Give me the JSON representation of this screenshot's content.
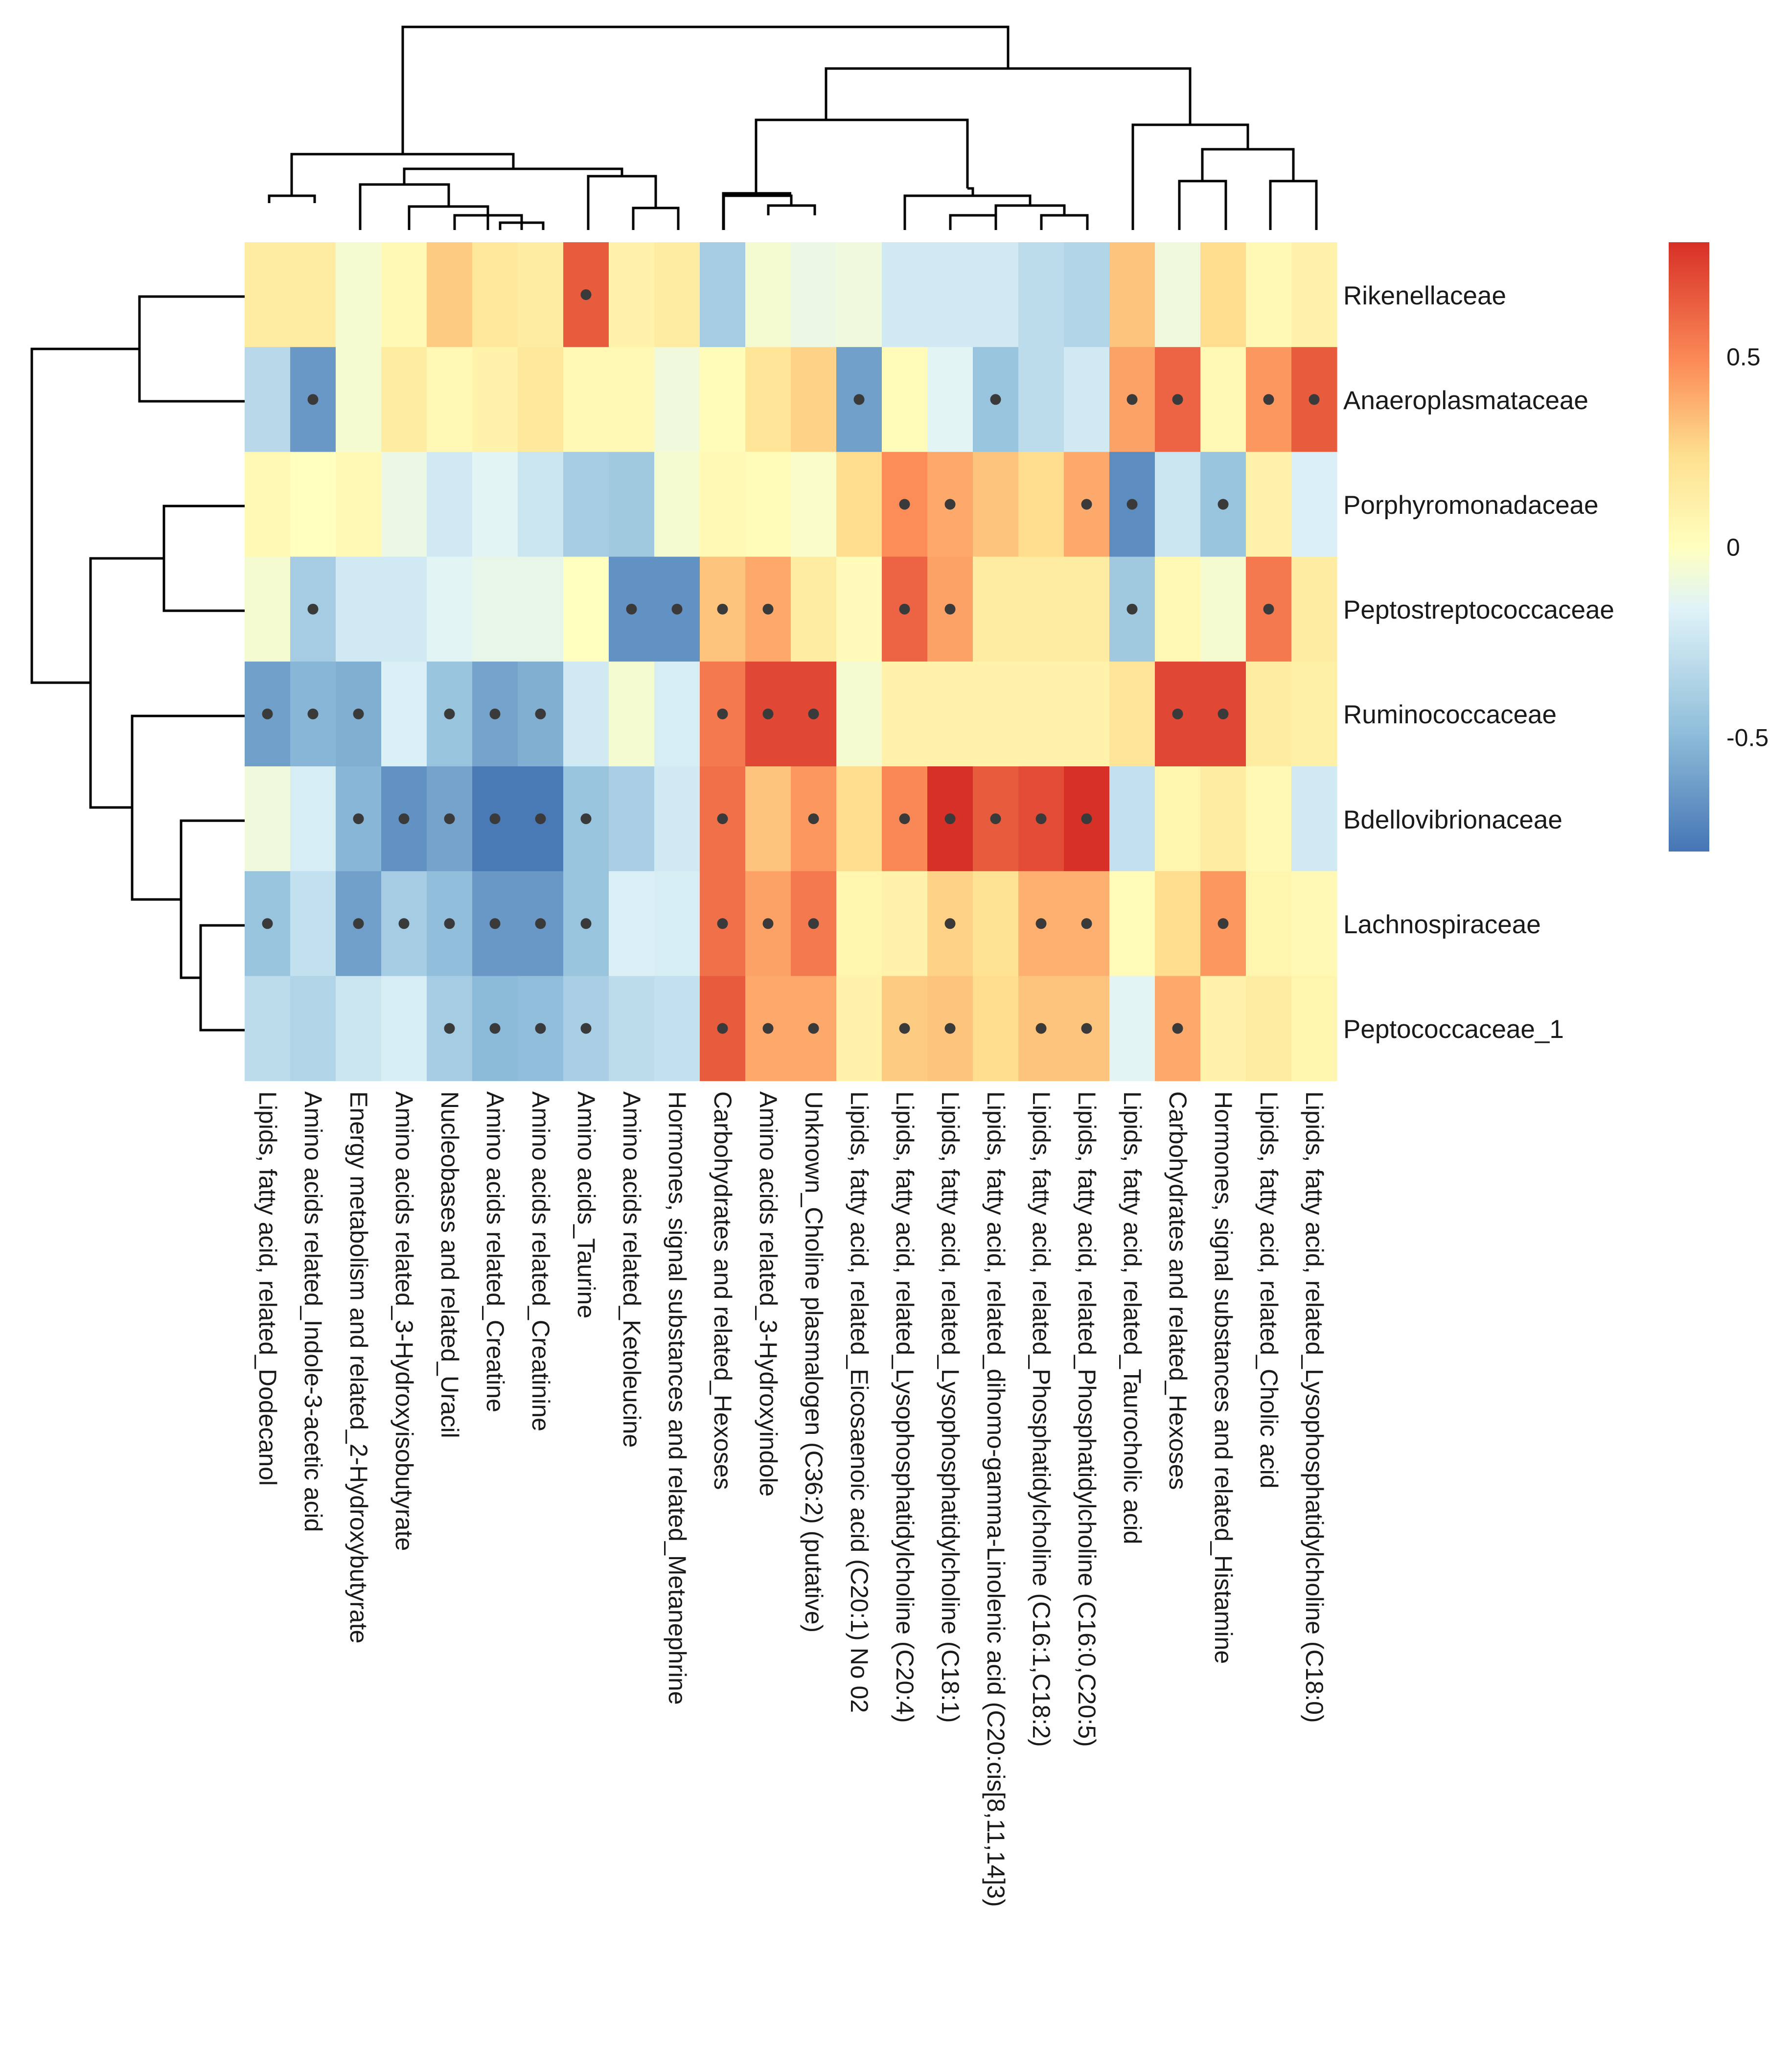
{
  "chart_data": {
    "type": "heatmap",
    "title": "",
    "rows": [
      "Rikenellaceae",
      "Anaeroplasmataceae",
      "Porphyromonadaceae",
      "Peptostreptococcaceae",
      "Ruminococcaceae",
      "Bdellovibrionaceae",
      "Lachnospiraceae",
      "Peptococcaceae_1"
    ],
    "columns": [
      "Lipids, fatty acid, related_Dodecanol",
      "Amino acids related_Indole-3-acetic acid",
      "Energy metabolism and related_2-Hydroxybutyrate",
      "Amino acids related_3-Hydroxyisobutyrate",
      "Nucleobases and related_Uracil",
      "Amino acids related_Creatine",
      "Amino acids related_Creatinine",
      "Amino acids_Taurine",
      "Amino acids related_Ketoleucine",
      "Hormones, signal substances and related_Metanephrine",
      "Carbohydrates and related_Hexoses",
      "Amino acids related_3-Hydroxyindole",
      "Unknown_Choline plasmalogen (C36:2) (putative)",
      "Lipids, fatty acid, related_Eicosaenoic acid (C20:1) No 02",
      "Lipids, fatty acid, related_Lysophosphatidylcholine (C20:4)",
      "Lipids, fatty acid, related_Lysophosphatidylcholine (C18:1)",
      "Lipids, fatty acid, related_dihomo-gamma-Linolenic acid (C20:cis[8,11,14]3)",
      "Lipids, fatty acid, related_Phosphatidylcholine (C16:1,C18:2)",
      "Lipids, fatty acid, related_Phosphatidylcholine (C16:0,C20:5)",
      "Lipids, fatty acid, related_Taurocholic acid",
      "Carbohydrates and related_Hexoses",
      "Hormones, signal substances and related_Histamine",
      "Lipids, fatty acid, related_Cholic acid",
      "Lipids, fatty acid, related_Lysophosphatidylcholine (C18:0)"
    ],
    "values": [
      [
        0.15,
        0.15,
        -0.05,
        0.05,
        0.3,
        0.18,
        0.15,
        0.65,
        0.1,
        0.15,
        -0.4,
        -0.05,
        -0.1,
        -0.08,
        -0.22,
        -0.22,
        -0.22,
        -0.3,
        -0.35,
        0.32,
        -0.08,
        0.25,
        0.05,
        0.1
      ],
      [
        -0.32,
        -0.65,
        -0.05,
        0.15,
        0.05,
        0.1,
        0.18,
        0.05,
        0.05,
        -0.08,
        0.03,
        0.2,
        0.28,
        -0.62,
        0.03,
        -0.15,
        -0.45,
        -0.3,
        -0.22,
        0.42,
        0.62,
        0.05,
        0.45,
        0.65
      ],
      [
        0.05,
        0.0,
        0.05,
        -0.1,
        -0.22,
        -0.15,
        -0.25,
        -0.4,
        -0.42,
        -0.05,
        0.05,
        0.03,
        -0.03,
        0.25,
        0.48,
        0.4,
        0.32,
        0.25,
        0.4,
        -0.7,
        -0.25,
        -0.45,
        0.1,
        -0.18
      ],
      [
        -0.05,
        -0.4,
        -0.22,
        -0.22,
        -0.15,
        -0.12,
        -0.12,
        0.0,
        -0.68,
        -0.68,
        0.32,
        0.4,
        0.15,
        0.02,
        0.62,
        0.42,
        0.15,
        0.15,
        0.15,
        -0.42,
        0.05,
        -0.05,
        0.55,
        0.15
      ],
      [
        -0.62,
        -0.52,
        -0.55,
        -0.18,
        -0.45,
        -0.6,
        -0.55,
        -0.22,
        -0.05,
        -0.2,
        0.55,
        0.72,
        0.72,
        -0.05,
        0.1,
        0.1,
        0.1,
        0.1,
        0.1,
        0.2,
        0.72,
        0.72,
        0.15,
        0.12
      ],
      [
        -0.08,
        -0.2,
        -0.52,
        -0.68,
        -0.6,
        -0.78,
        -0.78,
        -0.45,
        -0.38,
        -0.22,
        0.58,
        0.32,
        0.45,
        0.25,
        0.5,
        0.8,
        0.65,
        0.7,
        0.82,
        -0.28,
        0.08,
        0.15,
        0.05,
        -0.22
      ],
      [
        -0.45,
        -0.28,
        -0.62,
        -0.4,
        -0.48,
        -0.65,
        -0.65,
        -0.45,
        -0.18,
        -0.2,
        0.58,
        0.42,
        0.55,
        0.08,
        0.1,
        0.28,
        0.22,
        0.38,
        0.38,
        0.03,
        0.25,
        0.45,
        0.08,
        0.05
      ],
      [
        -0.3,
        -0.35,
        -0.25,
        -0.2,
        -0.4,
        -0.5,
        -0.48,
        -0.38,
        -0.3,
        -0.28,
        0.65,
        0.4,
        0.4,
        0.1,
        0.3,
        0.32,
        0.25,
        0.32,
        0.32,
        -0.15,
        0.4,
        0.1,
        0.15,
        0.08
      ]
    ],
    "significant": [
      [
        7
      ],
      [
        1,
        13,
        16,
        19,
        20,
        22,
        23
      ],
      [
        14,
        15,
        18,
        19,
        21
      ],
      [
        1,
        8,
        9,
        10,
        11,
        14,
        15,
        19,
        22
      ],
      [
        0,
        1,
        2,
        4,
        5,
        6,
        10,
        11,
        12,
        20,
        21
      ],
      [
        2,
        3,
        4,
        5,
        6,
        7,
        10,
        12,
        14,
        15,
        16,
        17,
        18
      ],
      [
        0,
        2,
        3,
        4,
        5,
        6,
        7,
        10,
        11,
        12,
        15,
        17,
        18,
        21
      ],
      [
        4,
        5,
        6,
        7,
        10,
        11,
        12,
        14,
        15,
        17,
        18,
        20
      ]
    ],
    "colorbar": {
      "range": [
        -0.8,
        0.8
      ],
      "ticks": [
        -0.5,
        0,
        0.5
      ],
      "tick_labels": [
        "-0.5",
        "0",
        "0.5"
      ],
      "low_color": "#4575B4",
      "mid_color": "#FFFFBF",
      "high_color": "#D73027"
    },
    "row_dendrogram": [
      "Rikenellaceae",
      "Anaeroplasmataceae",
      "Porphyromonadaceae",
      "Peptostreptococcaceae",
      "Ruminococcaceae",
      "Bdellovibrionaceae",
      "Lachnospiraceae",
      "Peptococcaceae_1"
    ],
    "column_dendrogram": "hierarchical clustering of the 24 metabolite columns"
  }
}
